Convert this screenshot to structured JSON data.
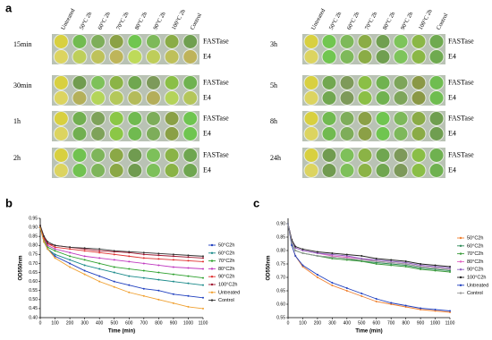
{
  "panel_a": {
    "label": "a",
    "columns": [
      "Untreated",
      "50°C 2h",
      "60°C 2h",
      "70°C 2h",
      "80°C 2h",
      "90°C 2h",
      "100°C 2h",
      "Control"
    ],
    "left": [
      {
        "time": "15min",
        "rows": [
          "FASTase",
          "E4"
        ]
      },
      {
        "time": "30min",
        "rows": [
          "FASTase",
          "E4"
        ]
      },
      {
        "time": "1h",
        "rows": [
          "FASTase",
          "E4"
        ]
      },
      {
        "time": "2h",
        "rows": [
          "FASTase",
          "E4"
        ]
      }
    ],
    "right": [
      {
        "time": "3h",
        "rows": [
          "FASTase",
          "E4"
        ]
      },
      {
        "time": "5h",
        "rows": [
          "FASTase",
          "E4"
        ]
      },
      {
        "time": "8h",
        "rows": [
          "FASTase",
          "E4"
        ]
      },
      {
        "time": "24h",
        "rows": [
          "FASTase",
          "E4"
        ]
      }
    ]
  },
  "chart_data": [
    {
      "type": "line",
      "label": "b",
      "xlabel": "Time (min)",
      "ylabel": "OD550nm",
      "x": [
        0,
        25,
        50,
        100,
        200,
        300,
        400,
        500,
        600,
        700,
        800,
        900,
        1000,
        1100
      ],
      "xlim": [
        0,
        1100
      ],
      "xticks": [
        0,
        100,
        200,
        300,
        400,
        500,
        600,
        700,
        800,
        900,
        1000,
        1100
      ],
      "ylim": [
        0.4,
        0.95
      ],
      "yticks": [
        {
          "value": 0.4,
          "label": "0.40"
        },
        0.45,
        {
          "value": 0.5,
          "label": "0.50"
        },
        0.55,
        {
          "value": 0.6,
          "label": "0.60"
        },
        0.65,
        {
          "value": 0.7,
          "label": "0.70"
        },
        0.75,
        {
          "value": 0.8,
          "label": "0.80"
        },
        0.85,
        {
          "value": 0.9,
          "label": "0.90"
        },
        0.95
      ],
      "series": [
        {
          "name": "50°C2h",
          "color": "#1f3fbf",
          "values": [
            0.9,
            0.82,
            0.78,
            0.74,
            0.7,
            0.66,
            0.63,
            0.6,
            0.58,
            0.56,
            0.55,
            0.53,
            0.52,
            0.51
          ]
        },
        {
          "name": "60°C2h",
          "color": "#1a8a8a",
          "values": [
            0.9,
            0.82,
            0.78,
            0.75,
            0.72,
            0.69,
            0.67,
            0.65,
            0.63,
            0.62,
            0.61,
            0.6,
            0.59,
            0.58
          ]
        },
        {
          "name": "70°C2h",
          "color": "#2ca02c",
          "values": [
            0.9,
            0.83,
            0.79,
            0.77,
            0.74,
            0.72,
            0.7,
            0.68,
            0.67,
            0.66,
            0.65,
            0.64,
            0.63,
            0.62
          ]
        },
        {
          "name": "80°C2h",
          "color": "#c03ac0",
          "values": [
            0.9,
            0.84,
            0.8,
            0.78,
            0.76,
            0.74,
            0.73,
            0.72,
            0.71,
            0.7,
            0.69,
            0.68,
            0.675,
            0.67
          ]
        },
        {
          "name": "90°C2h",
          "color": "#e03030",
          "values": [
            0.9,
            0.84,
            0.81,
            0.79,
            0.78,
            0.77,
            0.76,
            0.75,
            0.74,
            0.73,
            0.725,
            0.72,
            0.715,
            0.71
          ]
        },
        {
          "name": "100°C2h",
          "color": "#a01830",
          "values": [
            0.91,
            0.85,
            0.81,
            0.8,
            0.79,
            0.78,
            0.77,
            0.765,
            0.76,
            0.75,
            0.745,
            0.74,
            0.735,
            0.73
          ]
        },
        {
          "name": "Untreated",
          "color": "#f0a030",
          "values": [
            0.9,
            0.82,
            0.78,
            0.73,
            0.68,
            0.64,
            0.6,
            0.57,
            0.54,
            0.52,
            0.5,
            0.48,
            0.46,
            0.45
          ]
        },
        {
          "name": "Control",
          "color": "#333333",
          "values": [
            0.91,
            0.85,
            0.82,
            0.8,
            0.79,
            0.785,
            0.78,
            0.77,
            0.765,
            0.76,
            0.755,
            0.75,
            0.745,
            0.74
          ]
        }
      ]
    },
    {
      "type": "line",
      "label": "c",
      "xlabel": "Time (min)",
      "ylabel": "OD550nm",
      "x": [
        0,
        25,
        50,
        100,
        200,
        300,
        400,
        500,
        600,
        700,
        800,
        900,
        1000,
        1100
      ],
      "xlim": [
        0,
        1100
      ],
      "xticks": [
        0,
        100,
        200,
        300,
        400,
        500,
        600,
        700,
        800,
        900,
        1000,
        1100
      ],
      "ylim": [
        0.55,
        0.92
      ],
      "yticks": [
        0.55,
        {
          "value": 0.6,
          "label": "0.60"
        },
        0.65,
        {
          "value": 0.7,
          "label": "0.70"
        },
        0.75,
        {
          "value": 0.8,
          "label": "0.80"
        },
        0.85,
        {
          "value": 0.9,
          "label": "0.90"
        }
      ],
      "series": [
        {
          "name": "50°C2h",
          "color": "#f08030",
          "values": [
            0.9,
            0.82,
            0.78,
            0.74,
            0.7,
            0.67,
            0.65,
            0.63,
            0.61,
            0.6,
            0.59,
            0.58,
            0.575,
            0.57
          ]
        },
        {
          "name": "60°C2h",
          "color": "#2e8b57",
          "values": [
            0.9,
            0.83,
            0.8,
            0.79,
            0.78,
            0.775,
            0.77,
            0.76,
            0.755,
            0.75,
            0.745,
            0.735,
            0.73,
            0.725
          ]
        },
        {
          "name": "70°C2h",
          "color": "#3a9a3a",
          "values": [
            0.9,
            0.83,
            0.8,
            0.79,
            0.78,
            0.77,
            0.765,
            0.76,
            0.75,
            0.745,
            0.74,
            0.73,
            0.725,
            0.72
          ]
        },
        {
          "name": "80°C2h",
          "color": "#e060c0",
          "values": [
            0.9,
            0.84,
            0.81,
            0.8,
            0.79,
            0.78,
            0.775,
            0.77,
            0.76,
            0.755,
            0.75,
            0.74,
            0.735,
            0.73
          ]
        },
        {
          "name": "90°C2h",
          "color": "#9060c0",
          "values": [
            0.9,
            0.84,
            0.81,
            0.8,
            0.79,
            0.785,
            0.78,
            0.77,
            0.765,
            0.76,
            0.755,
            0.745,
            0.74,
            0.735
          ]
        },
        {
          "name": "100°C2h",
          "color": "#222222",
          "values": [
            0.9,
            0.84,
            0.815,
            0.805,
            0.795,
            0.79,
            0.785,
            0.78,
            0.77,
            0.765,
            0.76,
            0.75,
            0.745,
            0.74
          ]
        },
        {
          "name": "Untreated",
          "color": "#1f3fbf",
          "values": [
            0.9,
            0.82,
            0.78,
            0.745,
            0.71,
            0.68,
            0.66,
            0.64,
            0.62,
            0.605,
            0.595,
            0.585,
            0.58,
            0.575
          ]
        },
        {
          "name": "Control",
          "color": "#999999",
          "values": [
            0.9,
            0.83,
            0.8,
            0.79,
            0.78,
            0.775,
            0.77,
            0.765,
            0.76,
            0.755,
            0.75,
            0.74,
            0.735,
            0.73
          ]
        }
      ]
    }
  ]
}
